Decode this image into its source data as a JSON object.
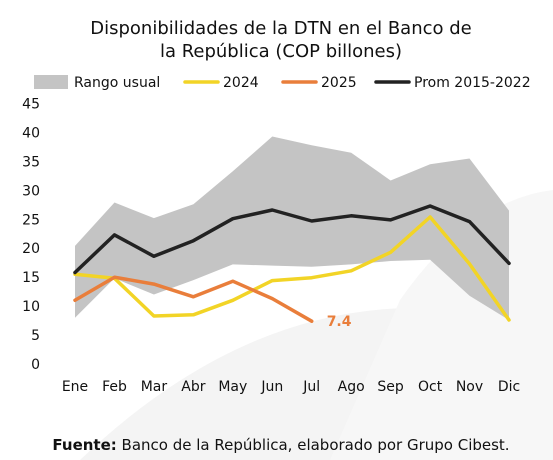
{
  "colors": {
    "range": "#c4c4c4",
    "s2024": "#f2d426",
    "s2025": "#e97e3b",
    "prom": "#222222",
    "watermark": "#f2f2f2"
  },
  "footer": {
    "label": "Fuente:",
    "text": " Banco de la República, elaborado por Grupo Cibest."
  },
  "chart_data": {
    "type": "line",
    "title_lines": [
      "Disponibilidades de la DTN en el Banco de",
      "la República (COP billones)"
    ],
    "categories": [
      "Ene",
      "Feb",
      "Mar",
      "Abr",
      "May",
      "Jun",
      "Jul",
      "Ago",
      "Sep",
      "Oct",
      "Nov",
      "Dic"
    ],
    "ylim": [
      0,
      45
    ],
    "yticks": [
      0,
      5,
      10,
      15,
      20,
      25,
      30,
      35,
      40,
      45
    ],
    "grid": false,
    "legend_position": "top",
    "band": {
      "name": "Rango usual",
      "color": "#c4c4c4",
      "lower": [
        8.0,
        14.8,
        12.0,
        14.5,
        17.2,
        17.0,
        16.8,
        17.2,
        17.8,
        18.0,
        11.8,
        7.6
      ],
      "upper": [
        20.4,
        27.9,
        25.2,
        27.6,
        33.3,
        39.3,
        37.8,
        36.5,
        31.7,
        34.5,
        35.5,
        26.5
      ]
    },
    "series": [
      {
        "name": "2024",
        "color": "#f2d426",
        "values": [
          15.5,
          14.8,
          8.3,
          8.5,
          11.0,
          14.4,
          14.9,
          16.1,
          19.3,
          25.4,
          17.3,
          7.6
        ]
      },
      {
        "name": "2025",
        "color": "#e97e3b",
        "values": [
          11.0,
          15.0,
          13.8,
          11.6,
          14.3,
          11.3,
          7.4,
          null,
          null,
          null,
          null,
          null
        ]
      },
      {
        "name": "Prom 2015-2022",
        "color": "#222222",
        "values": [
          15.8,
          22.3,
          18.6,
          21.3,
          25.1,
          26.6,
          24.7,
          25.6,
          24.9,
          27.3,
          24.6,
          17.4
        ]
      }
    ],
    "annotations": [
      {
        "series": "2025",
        "category": "Jul",
        "text": "7.4",
        "color": "#e97e3b"
      }
    ]
  }
}
